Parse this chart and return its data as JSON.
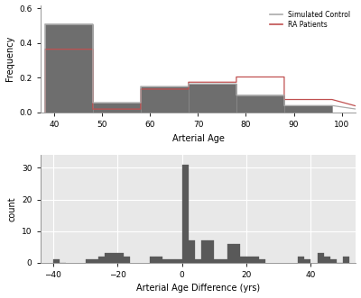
{
  "top": {
    "xlabel": "Arterial Age",
    "ylabel": "Frequency",
    "xlim": [
      37,
      103
    ],
    "ylim": [
      0,
      0.62
    ],
    "yticks": [
      0.0,
      0.2,
      0.4,
      0.6
    ],
    "xticks": [
      40,
      50,
      60,
      70,
      80,
      90,
      100
    ],
    "control_bins_edges": [
      38,
      48,
      58,
      68,
      78,
      88,
      98
    ],
    "control_freq": [
      0.51,
      0.057,
      0.15,
      0.165,
      0.1,
      0.04
    ],
    "ra_bins_edges": [
      38,
      48,
      58,
      68,
      78,
      88,
      98
    ],
    "ra_freq": [
      0.365,
      0.02,
      0.135,
      0.175,
      0.205,
      0.075
    ],
    "bar_color": "#6e6e6e",
    "bar_edge_color": "#888888",
    "ra_line_color": "#c05050",
    "control_line_color": "#aaaaaa",
    "legend_labels": [
      "Simulated Control",
      "RA Patients"
    ],
    "bg_color": "#ffffff"
  },
  "bottom": {
    "xlabel": "Arterial Age Difference (yrs)",
    "ylabel": "count",
    "xlim": [
      -44,
      54
    ],
    "ylim": [
      0,
      34
    ],
    "yticks": [
      0,
      10,
      20,
      30
    ],
    "xticks": [
      -40,
      -20,
      0,
      20,
      40
    ],
    "bar_color": "#595959",
    "bg_color": "#e8e8e8",
    "bin_width": 2,
    "bins_left": [
      -40,
      -38,
      -30,
      -28,
      -26,
      -24,
      -22,
      -20,
      -18,
      -10,
      -8,
      -6,
      -4,
      -2,
      0,
      2,
      4,
      6,
      8,
      10,
      12,
      14,
      16,
      18,
      20,
      22,
      24,
      36,
      38,
      42,
      44,
      46,
      48,
      50
    ],
    "counts": [
      1,
      0,
      1,
      1,
      2,
      3,
      3,
      3,
      2,
      2,
      2,
      1,
      1,
      1,
      31,
      7,
      1,
      7,
      7,
      1,
      1,
      6,
      6,
      2,
      2,
      2,
      1,
      2,
      1,
      3,
      2,
      1,
      0,
      2
    ]
  }
}
